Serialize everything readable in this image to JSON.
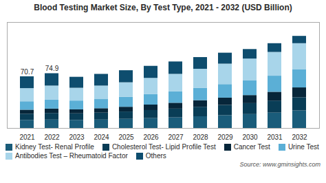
{
  "chart_data": {
    "type": "bar",
    "title": "Blood Testing Market Size, By Test Type, 2021 - 2032 (USD Billion)",
    "categories": [
      "2021",
      "2022",
      "2023",
      "2024",
      "2025",
      "2026",
      "2027",
      "2028",
      "2029",
      "2030",
      "2031",
      "2032"
    ],
    "series": [
      {
        "name": "Kidney Test- Renal Profile",
        "color": "#1a5c7a",
        "values": [
          11.0,
          11.5,
          11.0,
          11.5,
          12.5,
          13.5,
          14.5,
          16.0,
          17.5,
          19.0,
          21.0,
          24.0
        ]
      },
      {
        "name": "Cholesterol Test- Lipid Profile Test",
        "color": "#093d56",
        "values": [
          8.5,
          9.0,
          9.0,
          9.5,
          10.0,
          11.0,
          12.0,
          13.0,
          14.0,
          15.0,
          16.5,
          18.0
        ]
      },
      {
        "name": "Cancer Test",
        "color": "#07263a",
        "values": [
          5.5,
          6.0,
          5.5,
          6.0,
          6.5,
          7.5,
          8.0,
          9.0,
          10.0,
          11.0,
          12.0,
          13.5
        ]
      },
      {
        "name": "Urine Test",
        "color": "#5bafd6",
        "values": [
          11.5,
          12.5,
          12.0,
          12.5,
          13.5,
          14.5,
          15.5,
          17.0,
          18.5,
          20.0,
          22.0,
          25.0
        ]
      },
      {
        "name": "Antibodies Test – Rheumatoid Factor",
        "color": "#a8d5ea",
        "values": [
          18.0,
          19.0,
          17.5,
          18.5,
          20.0,
          22.0,
          24.0,
          26.0,
          28.0,
          30.0,
          32.5,
          35.5
        ]
      },
      {
        "name": "Others",
        "color": "#0e4d6e",
        "values": [
          16.2,
          16.9,
          15.0,
          16.0,
          16.5,
          16.5,
          17.0,
          16.0,
          15.0,
          13.0,
          12.0,
          10.0
        ]
      }
    ],
    "annotations": [
      {
        "x": "2021",
        "y": 70.7,
        "text": "70.7"
      },
      {
        "x": "2022",
        "y": 74.9,
        "text": "74.9"
      }
    ],
    "source": "Source: www.gminsights.com",
    "stacked": true,
    "ylim": [
      0,
      145
    ],
    "tick_labels": "x",
    "grid": false,
    "legend": "bottom"
  }
}
